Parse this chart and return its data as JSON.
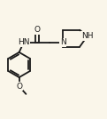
{
  "background_color": "#faf6ea",
  "line_color": "#1a1a1a",
  "line_width": 1.3,
  "font_size": 6.5,
  "fig_width": 1.21,
  "fig_height": 1.34,
  "dpi": 100,
  "xlim": [
    0.0,
    1.0
  ],
  "ylim": [
    0.0,
    1.0
  ]
}
